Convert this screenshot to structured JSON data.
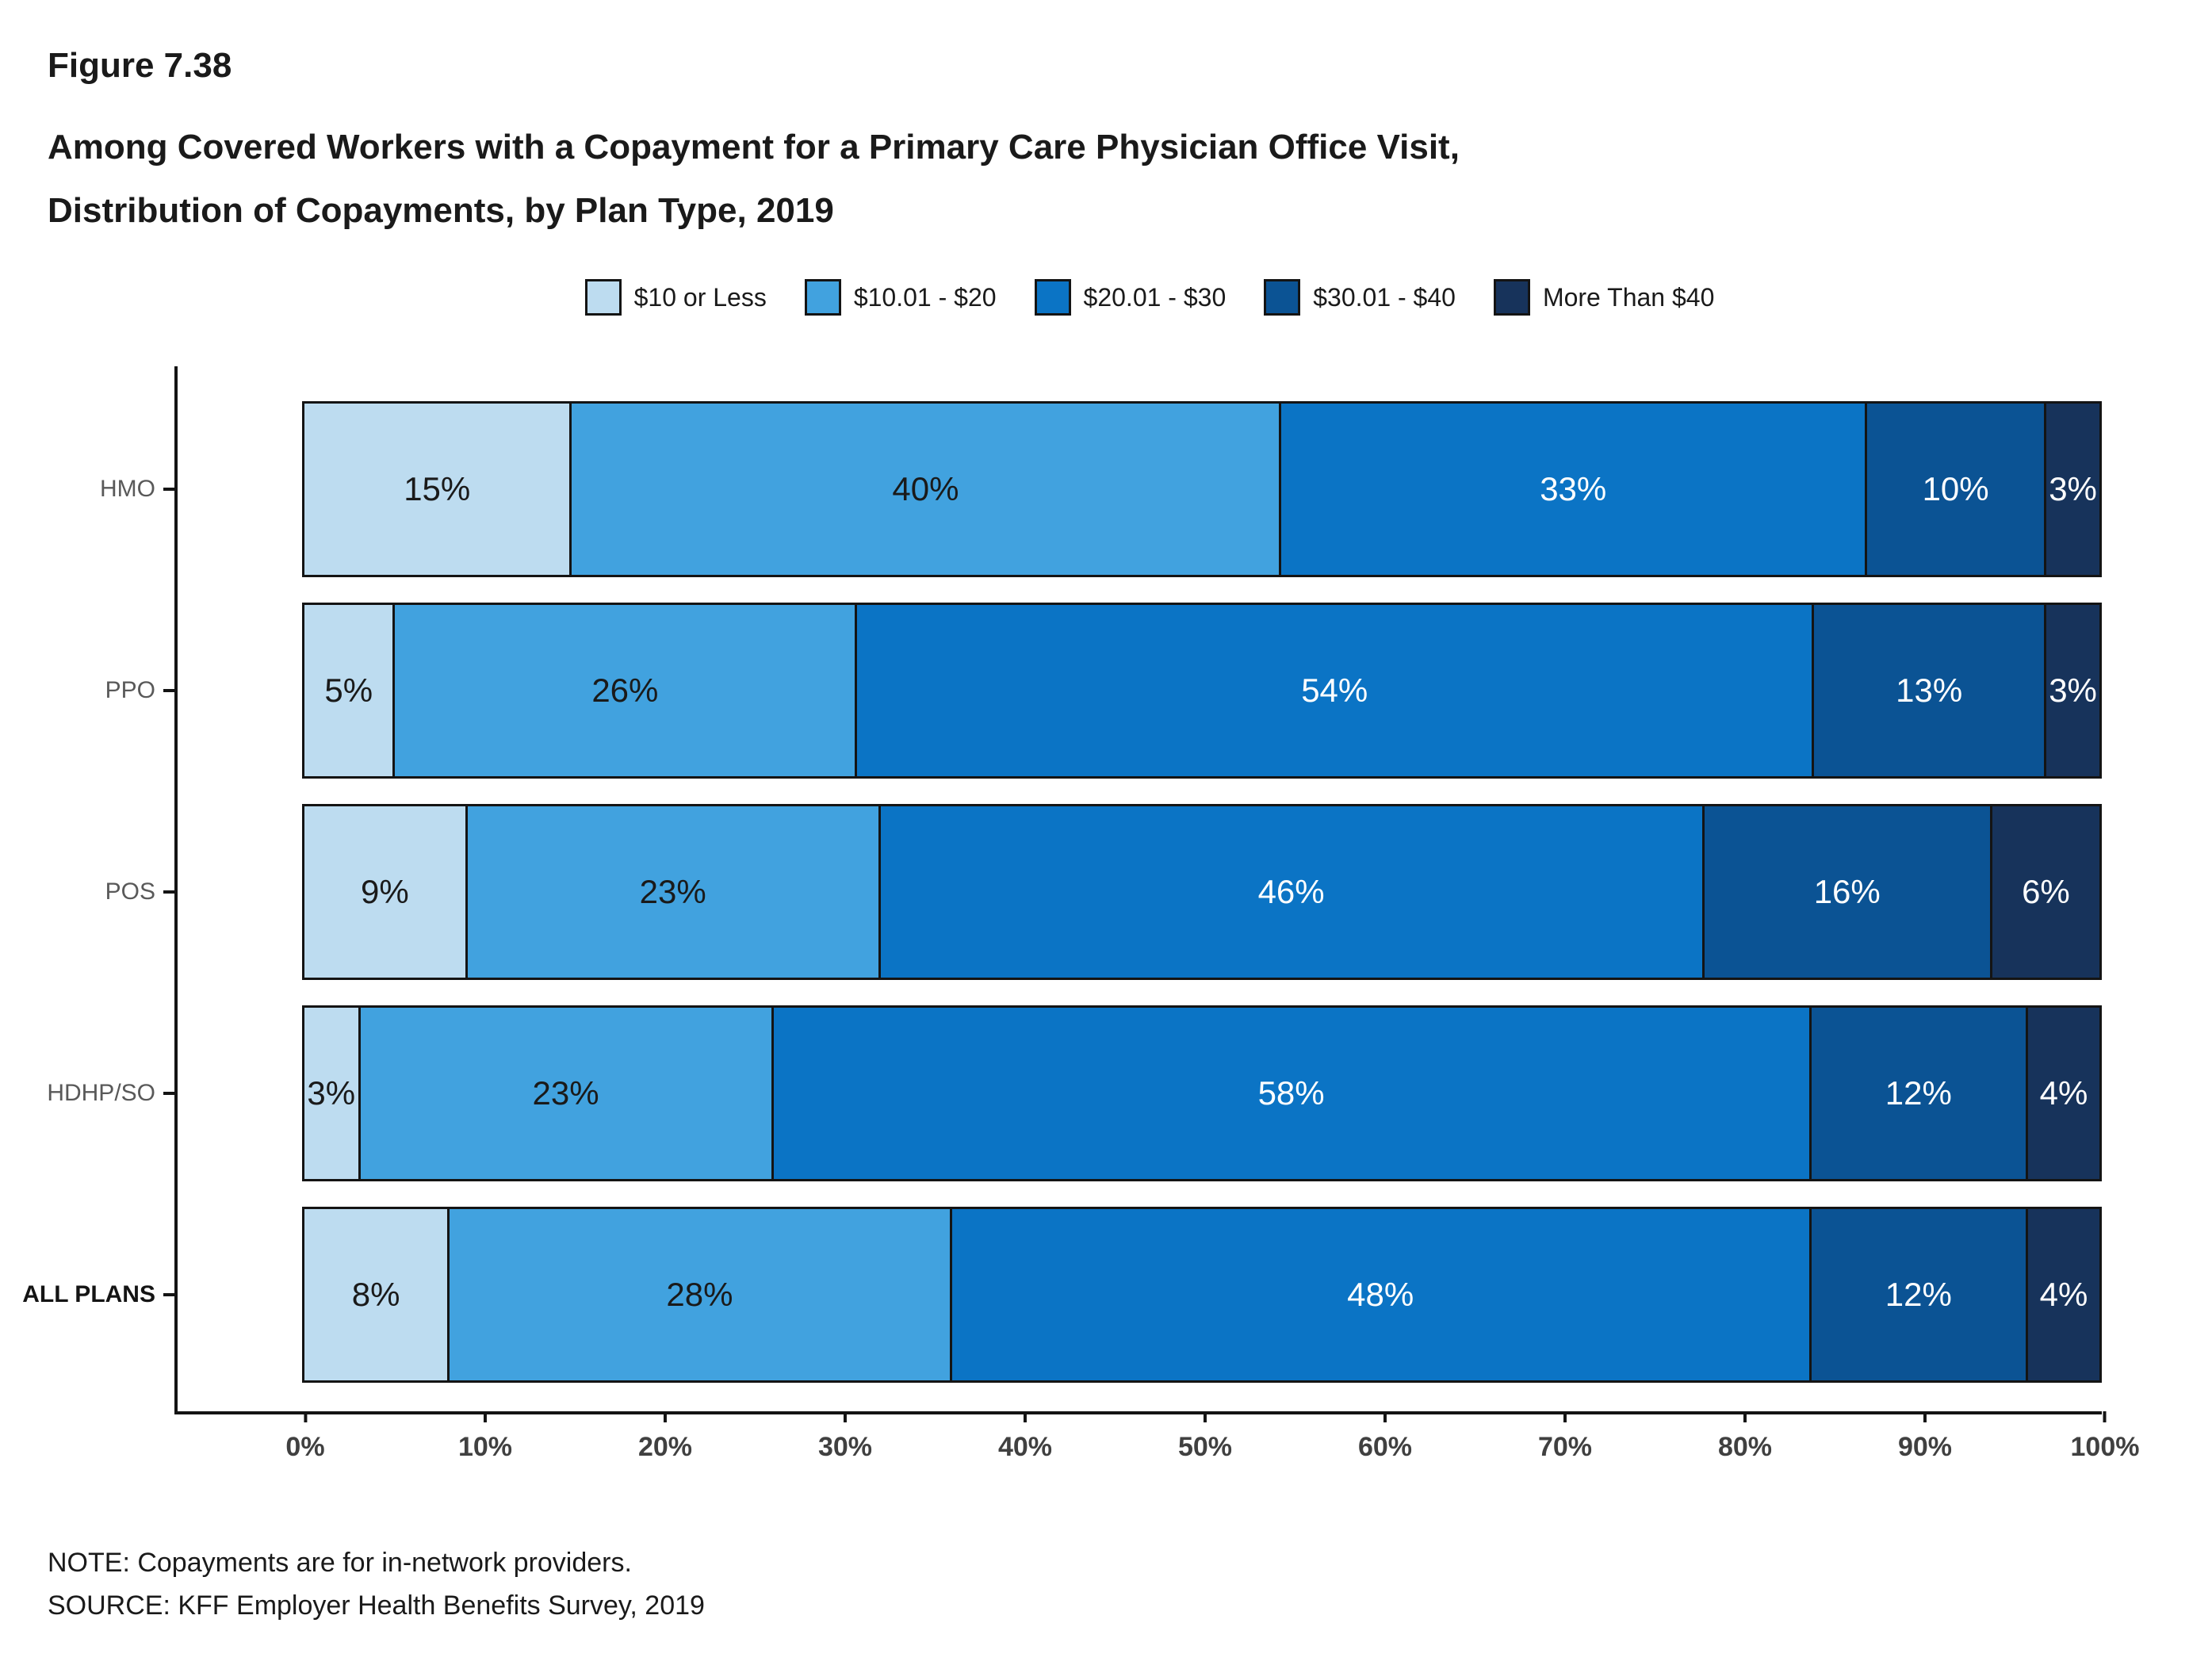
{
  "figure": {
    "label": "Figure 7.38",
    "title_line1": "Among Covered Workers with a Copayment for a Primary Care Physician Office Visit,",
    "title_line2": "Distribution of Copayments, by Plan Type, 2019"
  },
  "chart_data": {
    "type": "bar",
    "orientation": "horizontal",
    "stacked": true,
    "categories": [
      "HMO",
      "PPO",
      "POS",
      "HDHP/SO",
      "ALL PLANS"
    ],
    "emphasized_category": "ALL PLANS",
    "series": [
      {
        "name": "$10 or Less",
        "color": "#BDDCF0",
        "label_color": "#1a1a1a",
        "values": [
          15,
          5,
          9,
          3,
          8
        ]
      },
      {
        "name": "$10.01 - $20",
        "color": "#41A2DF",
        "label_color": "#1a1a1a",
        "values": [
          40,
          26,
          23,
          23,
          28
        ]
      },
      {
        "name": "$20.01 - $30",
        "color": "#0B74C5",
        "label_color": "#ffffff",
        "values": [
          33,
          54,
          46,
          58,
          48
        ]
      },
      {
        "name": "$30.01 - $40",
        "color": "#0B5394",
        "label_color": "#ffffff",
        "values": [
          10,
          13,
          16,
          12,
          12
        ]
      },
      {
        "name": "More Than $40",
        "color": "#17335B",
        "label_color": "#ffffff",
        "values": [
          3,
          3,
          6,
          4,
          4
        ]
      }
    ],
    "xlabel_ticks": [
      "0%",
      "10%",
      "20%",
      "30%",
      "40%",
      "50%",
      "60%",
      "70%",
      "80%",
      "90%",
      "100%"
    ],
    "xlim": [
      0,
      100
    ],
    "legend_position": "top",
    "grid": false,
    "value_suffix": "%"
  },
  "note": "NOTE: Copayments are for in-network providers.",
  "source": "SOURCE: KFF Employer Health Benefits Survey, 2019"
}
